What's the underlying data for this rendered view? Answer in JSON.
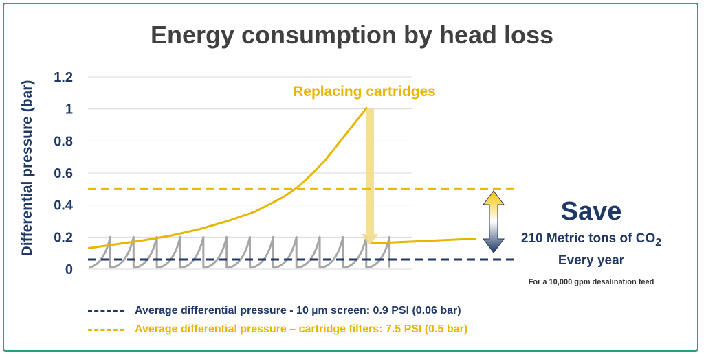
{
  "title": "Energy consumption by head loss",
  "colors": {
    "border": "#2e9c7d",
    "navy": "#1f3864",
    "gold": "#e8b500",
    "gray": "#a6a6a6",
    "title": "#404040"
  },
  "chart_data": {
    "type": "line",
    "title": "Energy consumption by head loss",
    "xlabel": "",
    "ylabel": "Differential pressure (bar)",
    "ylim": [
      0,
      1.2
    ],
    "yticks": [
      "1.2",
      "1",
      "0.8",
      "0.6",
      "0.4",
      "0.2",
      "0"
    ],
    "grid": true,
    "legend_position": "bottom",
    "series": [
      {
        "name": "Average differential pressure - 10 µm screen: 0.9 PSI (0.06 bar)",
        "style": "dashed",
        "color": "#1f3864",
        "value": 0.06
      },
      {
        "name": "Average differential pressure – cartridge filters: 7.5 PSI (0.5 bar)",
        "style": "dashed",
        "color": "#e8b500",
        "value": 0.5
      }
    ],
    "cartridge_curve": {
      "color": "#e8b500",
      "x": [
        0,
        0.1,
        0.2,
        0.3,
        0.4,
        0.5,
        0.6,
        0.7,
        0.75,
        0.8,
        0.85,
        0.9,
        0.95,
        1.0
      ],
      "y": [
        0.13,
        0.155,
        0.18,
        0.21,
        0.25,
        0.3,
        0.36,
        0.45,
        0.51,
        0.59,
        0.68,
        0.79,
        0.9,
        1.01
      ],
      "after_replacement": {
        "x": [
          0,
          1
        ],
        "y": [
          0.16,
          0.19
        ]
      }
    },
    "screen_sawtooth": {
      "color": "#a6a6a6",
      "cycles": 13,
      "min": 0.01,
      "max": 0.2
    },
    "annotations": {
      "replacing": "Replacing cartridges"
    }
  },
  "save": {
    "title": "Save",
    "line1_prefix": "210 Metric tons of CO",
    "line1_sub": "2",
    "line2": "Every year",
    "note": "For a 10,000 gpm desalination feed"
  }
}
